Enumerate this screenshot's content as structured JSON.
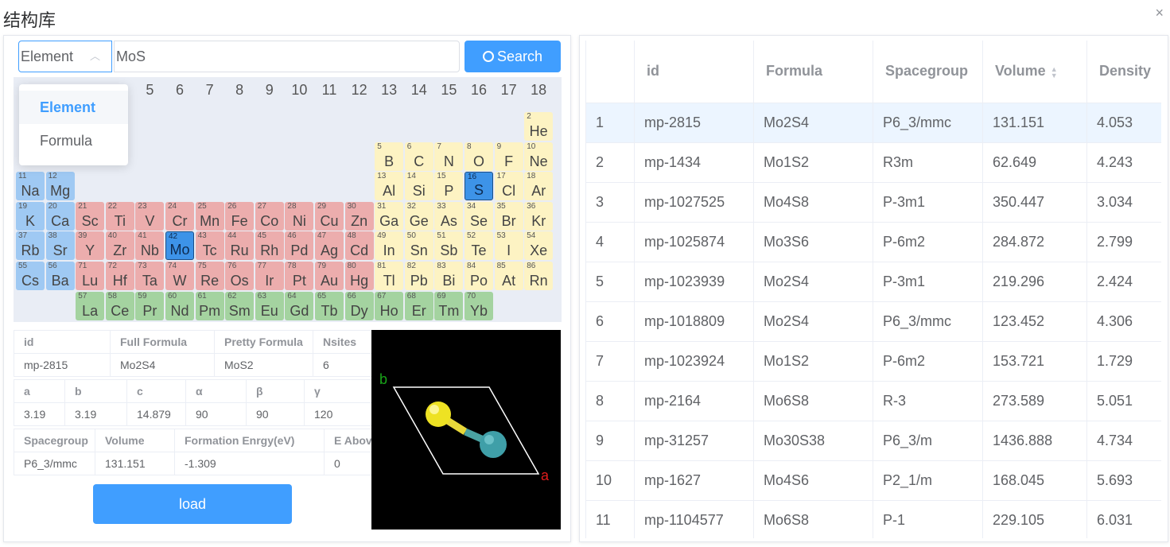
{
  "dialog": {
    "title": "结构库",
    "close_icon": "×"
  },
  "search": {
    "select_value": "Element",
    "select_options": [
      "Element",
      "Formula"
    ],
    "query": "MoS",
    "button_label": "Search"
  },
  "periodic_table": {
    "group_labels": [
      "5",
      "6",
      "7",
      "8",
      "9",
      "10",
      "11",
      "12",
      "13",
      "14",
      "15",
      "16",
      "17",
      "18"
    ],
    "selected": [
      "Mo",
      "S"
    ],
    "elements": [
      [
        "He",
        "2",
        17,
        0,
        "pb"
      ],
      [
        "B",
        "5",
        12,
        1,
        "pb"
      ],
      [
        "C",
        "6",
        13,
        1,
        "pb"
      ],
      [
        "N",
        "7",
        14,
        1,
        "pb"
      ],
      [
        "O",
        "8",
        15,
        1,
        "pb"
      ],
      [
        "F",
        "9",
        16,
        1,
        "pb"
      ],
      [
        "Ne",
        "10",
        17,
        1,
        "pb"
      ],
      [
        "Na",
        "11",
        0,
        2,
        "alk"
      ],
      [
        "Mg",
        "12",
        1,
        2,
        "alk"
      ],
      [
        "Al",
        "13",
        12,
        2,
        "pb"
      ],
      [
        "Si",
        "14",
        13,
        2,
        "pb"
      ],
      [
        "P",
        "15",
        14,
        2,
        "pb"
      ],
      [
        "S",
        "16",
        15,
        2,
        "sel"
      ],
      [
        "Cl",
        "17",
        16,
        2,
        "pb"
      ],
      [
        "Ar",
        "18",
        17,
        2,
        "pb"
      ],
      [
        "K",
        "19",
        0,
        3,
        "alk"
      ],
      [
        "Ca",
        "20",
        1,
        3,
        "alk"
      ],
      [
        "Sc",
        "21",
        2,
        3,
        "tm"
      ],
      [
        "Ti",
        "22",
        3,
        3,
        "tm"
      ],
      [
        "V",
        "23",
        4,
        3,
        "tm"
      ],
      [
        "Cr",
        "24",
        5,
        3,
        "tm"
      ],
      [
        "Mn",
        "25",
        6,
        3,
        "tm"
      ],
      [
        "Fe",
        "26",
        7,
        3,
        "tm"
      ],
      [
        "Co",
        "27",
        8,
        3,
        "tm"
      ],
      [
        "Ni",
        "28",
        9,
        3,
        "tm"
      ],
      [
        "Cu",
        "29",
        10,
        3,
        "tm"
      ],
      [
        "Zn",
        "30",
        11,
        3,
        "tm"
      ],
      [
        "Ga",
        "31",
        12,
        3,
        "pb"
      ],
      [
        "Ge",
        "32",
        13,
        3,
        "pb"
      ],
      [
        "As",
        "33",
        14,
        3,
        "pb"
      ],
      [
        "Se",
        "34",
        15,
        3,
        "pb"
      ],
      [
        "Br",
        "35",
        16,
        3,
        "pb"
      ],
      [
        "Kr",
        "36",
        17,
        3,
        "pb"
      ],
      [
        "Rb",
        "37",
        0,
        4,
        "alk"
      ],
      [
        "Sr",
        "38",
        1,
        4,
        "alk"
      ],
      [
        "Y",
        "39",
        2,
        4,
        "tm"
      ],
      [
        "Zr",
        "40",
        3,
        4,
        "tm"
      ],
      [
        "Nb",
        "41",
        4,
        4,
        "tm"
      ],
      [
        "Mo",
        "42",
        5,
        4,
        "sel"
      ],
      [
        "Tc",
        "43",
        6,
        4,
        "tm"
      ],
      [
        "Ru",
        "44",
        7,
        4,
        "tm"
      ],
      [
        "Rh",
        "45",
        8,
        4,
        "tm"
      ],
      [
        "Pd",
        "46",
        9,
        4,
        "tm"
      ],
      [
        "Ag",
        "47",
        10,
        4,
        "tm"
      ],
      [
        "Cd",
        "48",
        11,
        4,
        "tm"
      ],
      [
        "In",
        "49",
        12,
        4,
        "pb"
      ],
      [
        "Sn",
        "50",
        13,
        4,
        "pb"
      ],
      [
        "Sb",
        "51",
        14,
        4,
        "pb"
      ],
      [
        "Te",
        "52",
        15,
        4,
        "pb"
      ],
      [
        "I",
        "53",
        16,
        4,
        "pb"
      ],
      [
        "Xe",
        "54",
        17,
        4,
        "pb"
      ],
      [
        "Cs",
        "55",
        0,
        5,
        "alk"
      ],
      [
        "Ba",
        "56",
        1,
        5,
        "alk"
      ],
      [
        "Lu",
        "71",
        2,
        5,
        "tm"
      ],
      [
        "Hf",
        "72",
        3,
        5,
        "tm"
      ],
      [
        "Ta",
        "73",
        4,
        5,
        "tm"
      ],
      [
        "W",
        "74",
        5,
        5,
        "tm"
      ],
      [
        "Re",
        "75",
        6,
        5,
        "tm"
      ],
      [
        "Os",
        "76",
        7,
        5,
        "tm"
      ],
      [
        "Ir",
        "77",
        8,
        5,
        "tm"
      ],
      [
        "Pt",
        "78",
        9,
        5,
        "tm"
      ],
      [
        "Au",
        "79",
        10,
        5,
        "tm"
      ],
      [
        "Hg",
        "80",
        11,
        5,
        "tm"
      ],
      [
        "Tl",
        "81",
        12,
        5,
        "pb"
      ],
      [
        "Pb",
        "82",
        13,
        5,
        "pb"
      ],
      [
        "Bi",
        "83",
        14,
        5,
        "pb"
      ],
      [
        "Po",
        "84",
        15,
        5,
        "pb"
      ],
      [
        "At",
        "85",
        16,
        5,
        "pb"
      ],
      [
        "Rn",
        "86",
        17,
        5,
        "pb"
      ],
      [
        "La",
        "57",
        2,
        6,
        "ln"
      ],
      [
        "Ce",
        "58",
        3,
        6,
        "ln"
      ],
      [
        "Pr",
        "59",
        4,
        6,
        "ln"
      ],
      [
        "Nd",
        "60",
        5,
        6,
        "ln"
      ],
      [
        "Pm",
        "61",
        6,
        6,
        "ln"
      ],
      [
        "Sm",
        "62",
        7,
        6,
        "ln"
      ],
      [
        "Eu",
        "63",
        8,
        6,
        "ln"
      ],
      [
        "Gd",
        "64",
        9,
        6,
        "ln"
      ],
      [
        "Tb",
        "65",
        10,
        6,
        "ln"
      ],
      [
        "Dy",
        "66",
        11,
        6,
        "ln"
      ],
      [
        "Ho",
        "67",
        12,
        6,
        "ln"
      ],
      [
        "Er",
        "68",
        13,
        6,
        "ln"
      ],
      [
        "Tm",
        "69",
        14,
        6,
        "ln"
      ],
      [
        "Yb",
        "70",
        15,
        6,
        "ln"
      ]
    ]
  },
  "details": {
    "row1_headers": [
      "id",
      "Full Formula",
      "Pretty Formula",
      "Nsites"
    ],
    "row1_values": [
      "mp-2815",
      "Mo2S4",
      "MoS2",
      "6"
    ],
    "row2_headers": [
      "a",
      "b",
      "c",
      "α",
      "β",
      "γ"
    ],
    "row2_values": [
      "3.19",
      "3.19",
      "14.879",
      "90",
      "90",
      "120"
    ],
    "row3_headers": [
      "Spacegroup",
      "Volume",
      "Formation Enrgy(eV)",
      "E Above Hull"
    ],
    "row3_values": [
      "P6_3/mmc",
      "131.151",
      "-1.309",
      "0"
    ]
  },
  "load_button": "load",
  "viewer": {
    "axis_a": "a",
    "axis_b": "b"
  },
  "results": {
    "columns": [
      "",
      "id",
      "Formula",
      "Spacegroup",
      "Volume",
      "Density"
    ],
    "rows": [
      [
        "1",
        "mp-2815",
        "Mo2S4",
        "P6_3/mmc",
        "131.151",
        "4.053"
      ],
      [
        "2",
        "mp-1434",
        "Mo1S2",
        "R3m",
        "62.649",
        "4.243"
      ],
      [
        "3",
        "mp-1027525",
        "Mo4S8",
        "P-3m1",
        "350.447",
        "3.034"
      ],
      [
        "4",
        "mp-1025874",
        "Mo3S6",
        "P-6m2",
        "284.872",
        "2.799"
      ],
      [
        "5",
        "mp-1023939",
        "Mo2S4",
        "P-3m1",
        "219.296",
        "2.424"
      ],
      [
        "6",
        "mp-1018809",
        "Mo2S4",
        "P6_3/mmc",
        "123.452",
        "4.306"
      ],
      [
        "7",
        "mp-1023924",
        "Mo1S2",
        "P-6m2",
        "153.721",
        "1.729"
      ],
      [
        "8",
        "mp-2164",
        "Mo6S8",
        "R-3",
        "273.589",
        "5.051"
      ],
      [
        "9",
        "mp-31257",
        "Mo30S38",
        "P6_3/m",
        "1436.888",
        "4.734"
      ],
      [
        "10",
        "mp-1627",
        "Mo4S6",
        "P2_1/m",
        "168.045",
        "5.693"
      ],
      [
        "11",
        "mp-1104577",
        "Mo6S8",
        "P-1",
        "229.105",
        "6.031"
      ]
    ],
    "highlighted_row": 0
  },
  "colors": {
    "accent": "#409eff"
  }
}
